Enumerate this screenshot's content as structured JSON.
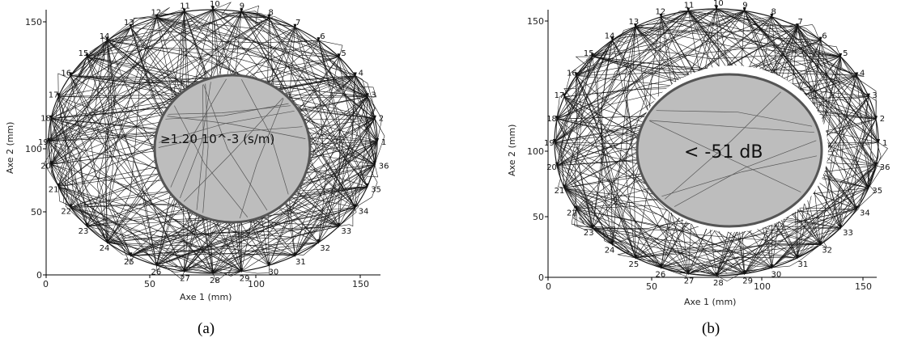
{
  "panels": [
    {
      "id": "a",
      "caption": "(a)",
      "xlabel": "Axe 1 (mm)",
      "ylabel": "Axe 2 (mm)",
      "xticks": [
        "0",
        "50",
        "100",
        "150"
      ],
      "yticks": [
        "0",
        "50",
        "100",
        "150"
      ],
      "inclusion_label": "≥1.20 10^-3 (s/m)",
      "sensor_labels": [
        "1",
        "2",
        "3",
        "4",
        "5",
        "6",
        "7",
        "8",
        "9",
        "10",
        "11",
        "12",
        "13",
        "14",
        "15",
        "16",
        "17",
        "18",
        "19",
        "20",
        "21",
        "22",
        "23",
        "24",
        "25",
        "26",
        "27",
        "28",
        "29",
        "30",
        "31",
        "32",
        "33",
        "34",
        "35",
        "36"
      ]
    },
    {
      "id": "b",
      "caption": "(b)",
      "xlabel": "Axe 1 (mm)",
      "ylabel": "Axe 2 (mm)",
      "xticks": [
        "0",
        "50",
        "100",
        "150"
      ],
      "yticks": [
        "0",
        "50",
        "100",
        "150"
      ],
      "inclusion_label": "< -51 dB",
      "sensor_labels": [
        "1",
        "2",
        "3",
        "4",
        "5",
        "6",
        "7",
        "8",
        "9",
        "10",
        "11",
        "12",
        "13",
        "14",
        "15",
        "16",
        "17",
        "18",
        "19",
        "20",
        "21",
        "22",
        "23",
        "24",
        "25",
        "26",
        "27",
        "28",
        "29",
        "30",
        "31",
        "32",
        "33",
        "34",
        "35",
        "36"
      ]
    }
  ],
  "colors": {
    "ray": "#1a1a1a",
    "inclusion_fill": "#bdbdbd",
    "inclusion_stroke": "#555555",
    "axes": "#000000"
  }
}
